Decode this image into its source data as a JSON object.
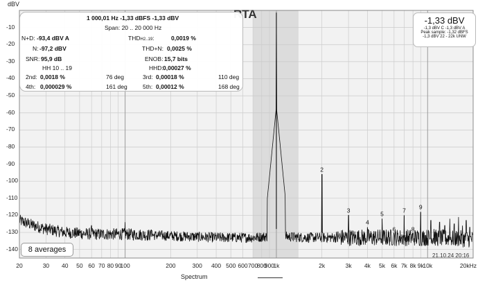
{
  "chart_data": {
    "type": "line",
    "title": "RTA",
    "ylabel": "dBV",
    "xlabel": "Spectrum",
    "x_scale": "log",
    "xlim": [
      20,
      20000
    ],
    "ylim": [
      -145,
      0
    ],
    "y_ticks": [
      -10,
      -20,
      -30,
      -40,
      -50,
      -60,
      -70,
      -80,
      -90,
      -100,
      -110,
      -120,
      -130,
      -140
    ],
    "x_ticks": [
      {
        "v": 20,
        "t": "20"
      },
      {
        "v": 30,
        "t": "30"
      },
      {
        "v": 40,
        "t": "40"
      },
      {
        "v": 50,
        "t": "50"
      },
      {
        "v": 60,
        "t": "60"
      },
      {
        "v": 70,
        "t": "70"
      },
      {
        "v": 80,
        "t": "80"
      },
      {
        "v": 90,
        "t": "90"
      },
      {
        "v": 100,
        "t": "100"
      },
      {
        "v": 200,
        "t": "200"
      },
      {
        "v": 300,
        "t": "300"
      },
      {
        "v": 400,
        "t": "400"
      },
      {
        "v": 500,
        "t": "500"
      },
      {
        "v": 600,
        "t": "600"
      },
      {
        "v": 700,
        "t": "700"
      },
      {
        "v": 800,
        "t": "800"
      },
      {
        "v": 900,
        "t": "900"
      },
      {
        "v": 1000,
        "t": "1k"
      },
      {
        "v": 2000,
        "t": "2k"
      },
      {
        "v": 3000,
        "t": "3k"
      },
      {
        "v": 4000,
        "t": "4k"
      },
      {
        "v": 5000,
        "t": "5k"
      },
      {
        "v": 6000,
        "t": "6k"
      },
      {
        "v": 7000,
        "t": "7k"
      },
      {
        "v": 8000,
        "t": "8k"
      },
      {
        "v": 9000,
        "t": "9k"
      },
      {
        "v": 10000,
        "t": "10k"
      },
      {
        "v": 20000,
        "t": "20kHz"
      }
    ],
    "highlight_band": [
      700,
      1400
    ],
    "grid": true,
    "fundamental": {
      "freq": 1000,
      "level": -1.33
    },
    "noise_floor": [
      [
        20,
        -123
      ],
      [
        25,
        -126
      ],
      [
        30,
        -128
      ],
      [
        40,
        -130
      ],
      [
        60,
        -131
      ],
      [
        100,
        -131
      ],
      [
        200,
        -132
      ],
      [
        400,
        -133
      ],
      [
        700,
        -133
      ],
      [
        1000,
        -132
      ],
      [
        1500,
        -133
      ],
      [
        3000,
        -133
      ],
      [
        6000,
        -133
      ],
      [
        10000,
        -133
      ],
      [
        20000,
        -134
      ]
    ],
    "harmonics": [
      {
        "n": "2",
        "freq": 2000,
        "level": -96
      },
      {
        "n": "3",
        "freq": 3000,
        "level": -120
      },
      {
        "n": "4",
        "freq": 4000,
        "level": -127
      },
      {
        "n": "5",
        "freq": 5000,
        "level": -122
      },
      {
        "n": "6",
        "freq": 6000,
        "level": -131
      },
      {
        "n": "7",
        "freq": 7000,
        "level": -120
      },
      {
        "n": "8",
        "freq": 8000,
        "level": -131
      },
      {
        "n": "9",
        "freq": 9000,
        "level": -118
      }
    ],
    "extra_spikes": [
      [
        50,
        -128
      ],
      [
        60,
        -126
      ],
      [
        100,
        -124
      ],
      [
        150,
        -129
      ],
      [
        300,
        -130
      ],
      [
        10500,
        -123
      ],
      [
        11000,
        -128
      ],
      [
        12000,
        -124
      ],
      [
        13000,
        -126
      ],
      [
        14000,
        -122
      ],
      [
        15000,
        -125
      ],
      [
        16000,
        -121
      ],
      [
        17000,
        -126
      ],
      [
        18000,
        -123
      ],
      [
        19000,
        -127
      ]
    ]
  },
  "stats": {
    "line1": "1 000,01 Hz  -1,33 dBFS  -1,33 dBV",
    "span": "Span: 20 .. 20 000 Hz",
    "npd_label": "N+D:",
    "npd_value": "-93,4 dBV A",
    "n_label": "N:",
    "n_value": "-97,2 dBV",
    "snr_label": "SNR:",
    "snr_value": "95,9 dB",
    "hh_label": "HH 10 .. 19",
    "thd_h_label_a": "THD",
    "thd_h_label_sub": "H2..19",
    "thd_h_value": "0,0019 %",
    "thdn_label": "THD+N:",
    "thdn_value": "0,0025 %",
    "enob_label": "ENOB:",
    "enob_value": "15,7 bits",
    "hhd_label": "HHD:",
    "hhd_value": "0,00027 %",
    "h2_label": "2nd:",
    "h2_value": "0,0018 %",
    "h2_phase": "76 deg",
    "h3_label": "3rd:",
    "h3_value": "0,00018 %",
    "h3_phase": "110 deg",
    "h4_label": "4th:",
    "h4_value": "0,000029 %",
    "h4_phase": "161 deg",
    "h5_label": "5th:",
    "h5_value": "0,00012 %",
    "h5_phase": "168 deg"
  },
  "level_box": {
    "main": "-1,33 dBV",
    "line2": "-1,3 dBV C  -1,3 dBV A",
    "line3": "Peak sample: -1,32 dBFS",
    "line4": "-1,3 dBV 22 - 22k UNW"
  },
  "averages": "8 averages",
  "timestamp": "21.10.24 20:16"
}
